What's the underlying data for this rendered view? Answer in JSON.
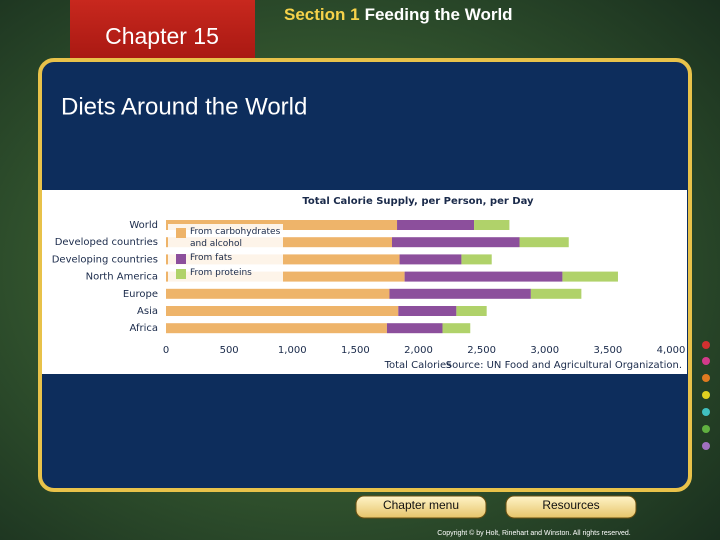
{
  "slide": {
    "chapter": "Chapter 15",
    "section": "Section 1",
    "section_title": "Feeding the World",
    "heading": "Diets Around the World",
    "buttons": [
      "Chapter menu",
      "Resources"
    ],
    "copyright": "Copyright © by Holt, Rinehart and Winston. All rights reserved."
  },
  "chart_data": {
    "type": "bar",
    "orientation": "horizontal",
    "stacked": true,
    "title": "Total Calorie Supply, per Person, per Day",
    "xlabel": "Total Calories",
    "source": "Source: UN Food and Agricultural Organization.",
    "categories": [
      "World",
      "Developed countries",
      "Developing countries",
      "North America",
      "Europe",
      "Asia",
      "Africa"
    ],
    "series": [
      {
        "name": "From carbohydrates and alcohol",
        "color": "#eeb46a",
        "values": [
          1830,
          1790,
          1850,
          1890,
          1770,
          1840,
          1750
        ]
      },
      {
        "name": "From fats",
        "color": "#8c4f9c",
        "values": [
          610,
          1010,
          490,
          1250,
          1120,
          460,
          440
        ]
      },
      {
        "name": "From proteins",
        "color": "#b0d26a",
        "values": [
          280,
          390,
          240,
          440,
          400,
          240,
          220
        ]
      }
    ],
    "xlim": [
      0,
      4000
    ],
    "xticks": [
      0,
      500,
      {
        "value": 1000,
        "label": "1,000"
      },
      {
        "value": 1500,
        "label": "1,500"
      },
      {
        "value": 2000,
        "label": "2,000"
      },
      {
        "value": 2500,
        "label": "2,500"
      },
      {
        "value": 3000,
        "label": "3,000"
      },
      {
        "value": 3500,
        "label": "3,500"
      },
      {
        "value": 4000,
        "label": "4,000"
      }
    ],
    "legend": "upper left"
  }
}
